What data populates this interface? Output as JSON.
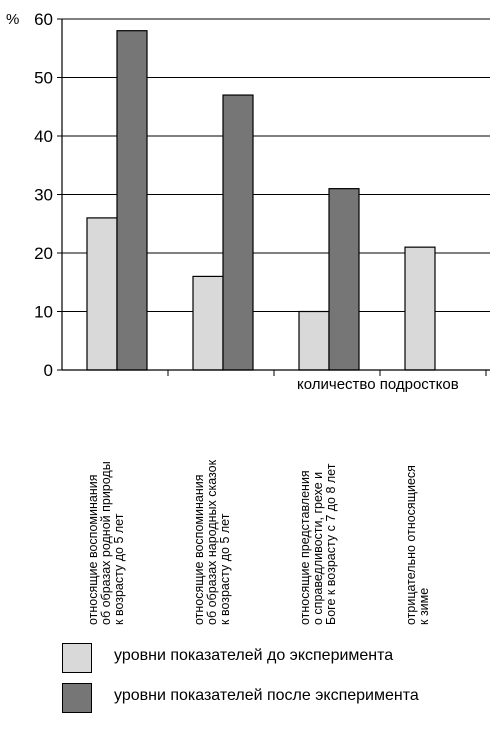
{
  "chart_data": {
    "type": "bar",
    "y_unit_label": "%",
    "ylim": [
      0,
      60
    ],
    "yticks": [
      0,
      10,
      20,
      30,
      40,
      50,
      60
    ],
    "x_axis_label": "количество подростков",
    "categories": [
      [
        "относящие воспоминания",
        "об образах родной природы",
        "к возрасту до 5 лет"
      ],
      [
        "относящие  воспоминания",
        "об образах народных сказок",
        "к возрасту до 5 лет"
      ],
      [
        "относящие представления",
        "о справедливости, грехе и",
        "Боге к возрасту с 7 до 8 лет"
      ],
      [
        "отрицательно относящиеся",
        "к зиме"
      ]
    ],
    "series": [
      {
        "name": "уровни показателей до эксперимента",
        "color": "#d9d9d9",
        "values": [
          26,
          16,
          10,
          21
        ]
      },
      {
        "name": "уровни показателей после эксперимента",
        "color": "#767676",
        "values": [
          58,
          47,
          31,
          null
        ]
      }
    ],
    "grid": "horizontal",
    "legend_position": "bottom"
  }
}
